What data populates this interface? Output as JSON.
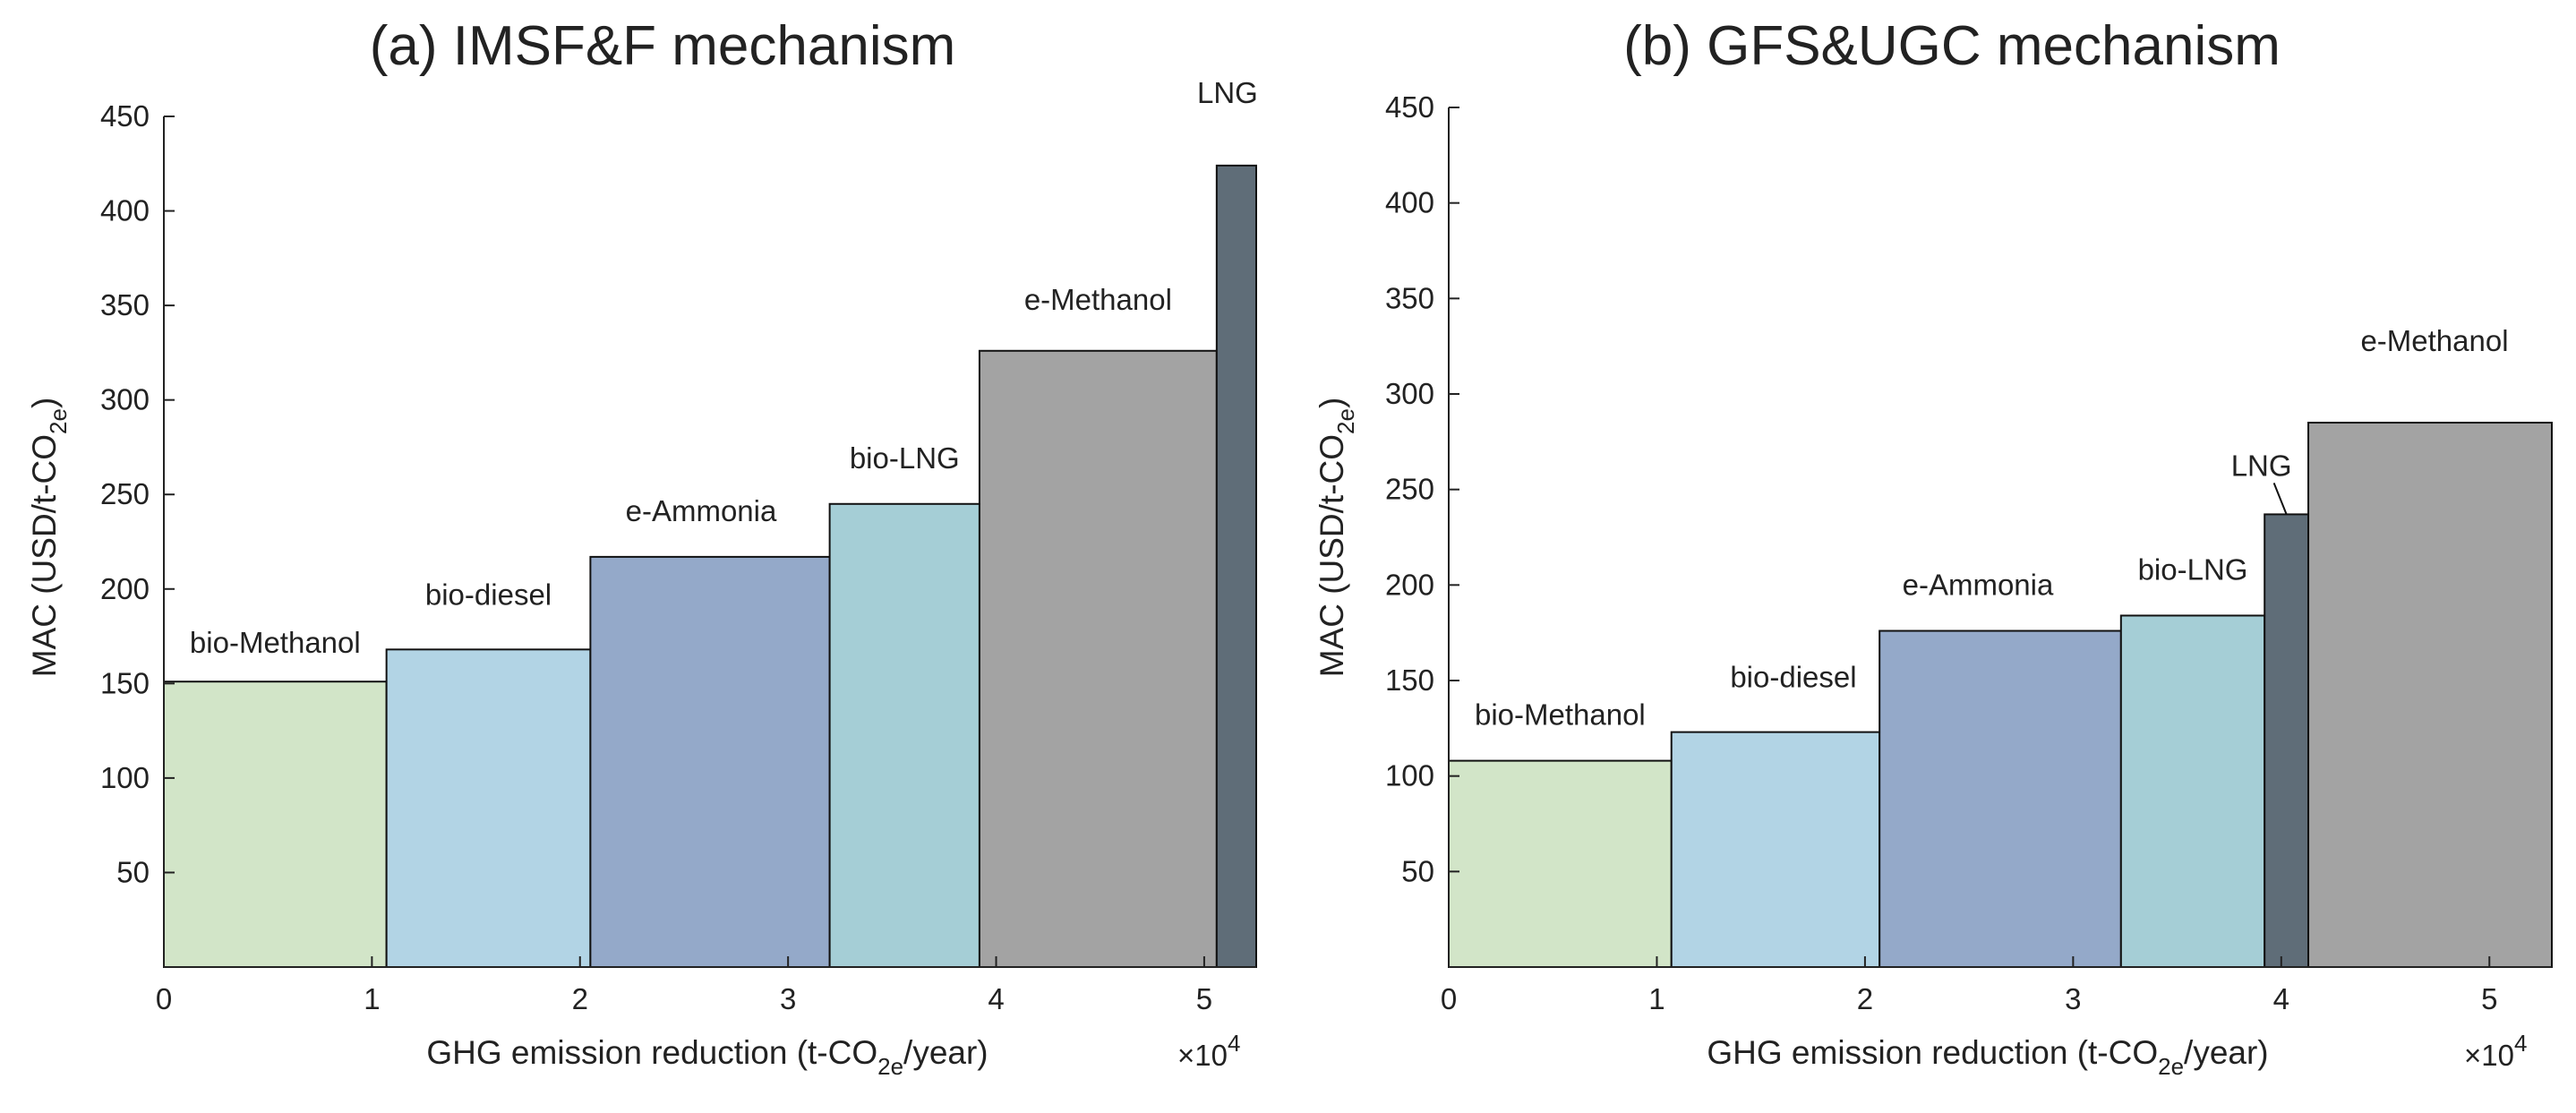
{
  "chart_data": [
    {
      "type": "bar",
      "variant": "marginal-abatement-cost-curve",
      "title": "(a) IMSF&F mechanism",
      "xlabel": {
        "prefix": "GHG emission reduction (t-CO",
        "subscript": "2e",
        "suffix": "/year)"
      },
      "ylabel": {
        "prefix": "MAC (USD/t-CO",
        "subscript": "2e",
        "suffix": ")"
      },
      "x_multiplier": {
        "times": "×10",
        "power": "4"
      },
      "xlim": [
        0,
        5.25
      ],
      "ylim": [
        0,
        450
      ],
      "xticks": [
        0,
        1,
        2,
        3,
        4,
        5
      ],
      "xtick_labels": [
        "0",
        "1",
        "2",
        "3",
        "4",
        "5"
      ],
      "yticks": [
        50,
        100,
        150,
        200,
        250,
        300,
        350,
        400,
        450
      ],
      "ytick_labels": [
        "50",
        "100",
        "150",
        "200",
        "250",
        "300",
        "350",
        "400",
        "450"
      ],
      "bars": [
        {
          "label": "bio-Methanol",
          "x_start": 0.0,
          "x_end": 1.07,
          "value": 151,
          "color": "#d2e5c8"
        },
        {
          "label": "bio-diesel",
          "x_start": 1.07,
          "x_end": 2.05,
          "value": 168,
          "color": "#b2d4e5"
        },
        {
          "label": "e-Ammonia",
          "x_start": 2.05,
          "x_end": 3.2,
          "value": 217,
          "color": "#94a9c9"
        },
        {
          "label": "bio-LNG",
          "x_start": 3.2,
          "x_end": 3.92,
          "value": 245,
          "color": "#a5ced6"
        },
        {
          "label": "e-Methanol",
          "x_start": 3.92,
          "x_end": 5.06,
          "value": 326,
          "color": "#a3a3a3"
        },
        {
          "label": "LNG",
          "x_start": 5.06,
          "x_end": 5.25,
          "value": 424,
          "color": "#5f6d78"
        }
      ]
    },
    {
      "type": "bar",
      "variant": "marginal-abatement-cost-curve",
      "title": "(b) GFS&UGC mechanism",
      "xlabel": {
        "prefix": "GHG emission reduction (t-CO",
        "subscript": "2e",
        "suffix": "/year)"
      },
      "ylabel": {
        "prefix": "MAC (USD/t-CO",
        "subscript": "2e",
        "suffix": ")"
      },
      "x_multiplier": {
        "times": "×10",
        "power": "4"
      },
      "xlim": [
        0,
        5.3
      ],
      "ylim": [
        0,
        450
      ],
      "xticks": [
        0,
        1,
        2,
        3,
        4,
        5
      ],
      "xtick_labels": [
        "0",
        "1",
        "2",
        "3",
        "4",
        "5"
      ],
      "yticks": [
        50,
        100,
        150,
        200,
        250,
        300,
        350,
        400,
        450
      ],
      "ytick_labels": [
        "50",
        "100",
        "150",
        "200",
        "250",
        "300",
        "350",
        "400",
        "450"
      ],
      "bars": [
        {
          "label": "bio-Methanol",
          "x_start": 0.0,
          "x_end": 1.07,
          "value": 108,
          "color": "#d2e5c8"
        },
        {
          "label": "bio-diesel",
          "x_start": 1.07,
          "x_end": 2.07,
          "value": 123,
          "color": "#b2d4e5"
        },
        {
          "label": "e-Ammonia",
          "x_start": 2.07,
          "x_end": 3.23,
          "value": 176,
          "color": "#94a9c9"
        },
        {
          "label": "bio-LNG",
          "x_start": 3.23,
          "x_end": 3.92,
          "value": 184,
          "color": "#a5ced6"
        },
        {
          "label": "LNG",
          "x_start": 3.92,
          "x_end": 4.13,
          "value": 237,
          "color": "#5f6d78",
          "callout": true
        },
        {
          "label": "e-Methanol",
          "x_start": 4.13,
          "x_end": 5.3,
          "value": 285,
          "color": "#a3a3a3"
        }
      ]
    }
  ]
}
